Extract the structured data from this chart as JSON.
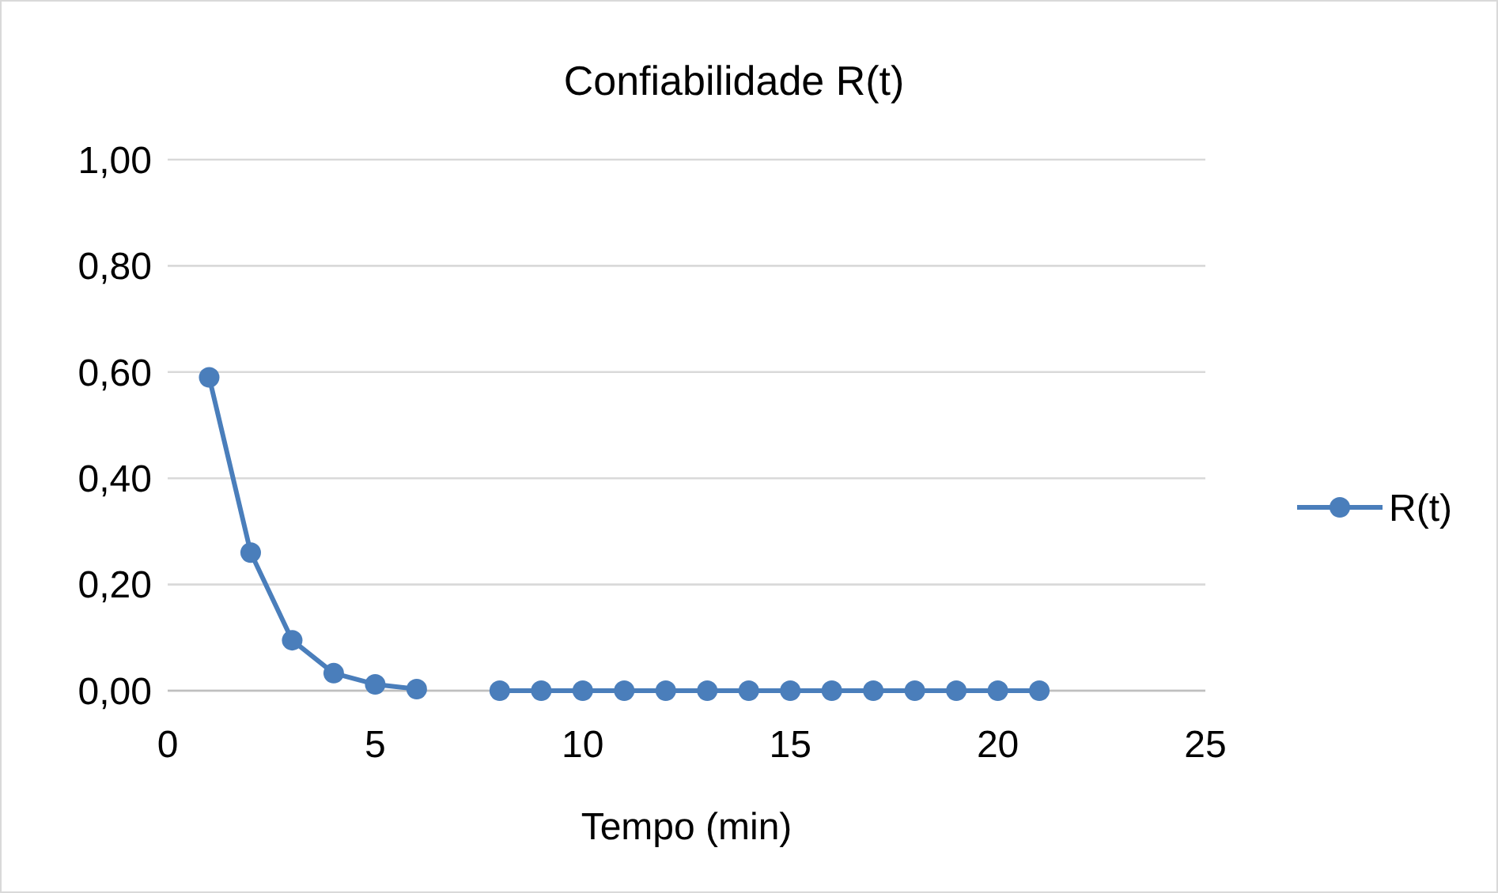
{
  "chart_data": {
    "type": "line",
    "title": "Confiabilidade R(t)",
    "xlabel": "Tempo (min)",
    "x": [
      1,
      2,
      3,
      4,
      5,
      6,
      7,
      8,
      9,
      10,
      11,
      12,
      13,
      14,
      15,
      16,
      17,
      18,
      19,
      20,
      21
    ],
    "series": [
      {
        "name": "R(t)",
        "color": "#4a7ebb",
        "values": [
          0.59,
          0.26,
          0.095,
          0.033,
          0.012,
          0.003,
          null,
          0,
          0,
          0,
          0,
          0,
          0,
          0,
          0,
          0,
          0,
          0,
          0,
          0,
          0
        ]
      }
    ],
    "xlim": [
      0,
      25
    ],
    "xticks": [
      0,
      5,
      10,
      15,
      20,
      25
    ],
    "ylim": [
      0,
      1
    ],
    "yticks": [
      {
        "value": 0,
        "label": "0,00"
      },
      {
        "value": 0.2,
        "label": "0,20"
      },
      {
        "value": 0.4,
        "label": "0,40"
      },
      {
        "value": 0.6,
        "label": "0,60"
      },
      {
        "value": 0.8,
        "label": "0,80"
      },
      {
        "value": 1,
        "label": "1,00"
      }
    ],
    "grid": "y",
    "legend": "right",
    "marker": "circle",
    "line_style": "solid"
  }
}
